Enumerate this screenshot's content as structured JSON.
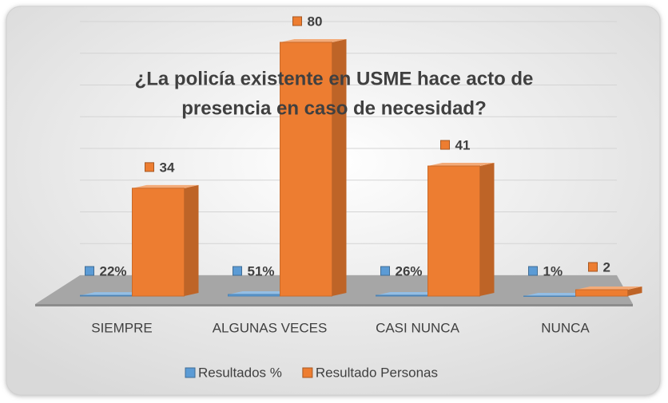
{
  "chart_data": {
    "type": "bar3d",
    "title": [
      "¿La policía existente en USME hace acto de",
      "presencia en caso de necesidad?"
    ],
    "categories": [
      "SIEMPRE",
      "ALGUNAS VECES",
      "CASI NUNCA",
      "NUNCA"
    ],
    "series": [
      {
        "name": "Resultados %",
        "color": "#5b9bd5",
        "values": [
          0.22,
          0.51,
          0.26,
          0.01
        ],
        "value_labels": [
          "22%",
          "51%",
          "26%",
          "1%"
        ]
      },
      {
        "name": "Resultado Personas",
        "color": "#ed7d31",
        "values": [
          34,
          80,
          41,
          2
        ]
      }
    ],
    "ylim": [
      0,
      90
    ],
    "yticks": [
      0,
      10,
      20,
      30,
      40,
      50,
      60,
      70,
      80,
      90
    ],
    "grid": true,
    "legend": "bottom"
  }
}
